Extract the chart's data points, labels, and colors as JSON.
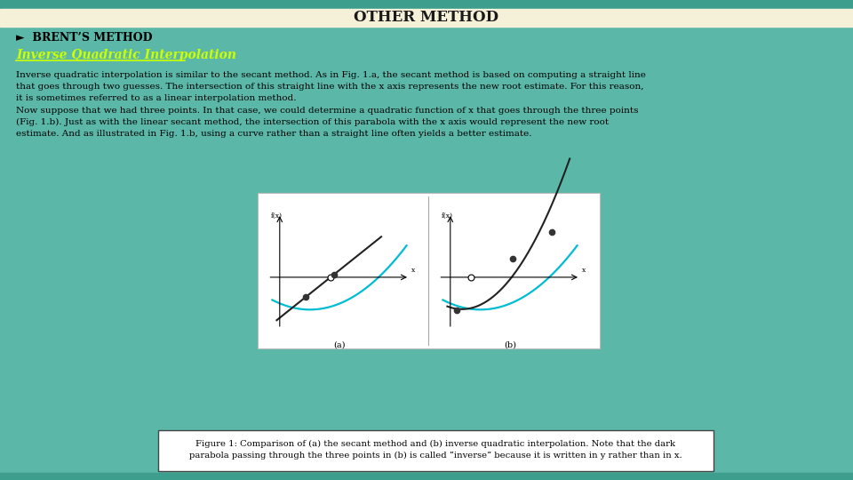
{
  "title": "OTHER METHOD",
  "title_bg": "#f5f0d8",
  "title_text_color": "#1a1a1a",
  "bg_color": "#5bb8a8",
  "stripe_color": "#3d9e8e",
  "subtitle": "►  BRENT’S METHOD",
  "subtitle_color": "#000000",
  "section_title": "Inverse Quadratic Interpolation",
  "section_title_color": "#ccff00",
  "body_text_1": "Inverse quadratic interpolation is similar to the secant method. As in Fig. 1.a, the secant method is based on computing a straight line\nthat goes through two guesses. The intersection of this straight line with the x axis represents the new root estimate. For this reason,\nit is sometimes referred to as a linear interpolation method.",
  "body_text_2": "Now suppose that we had three points. In that case, we could determine a quadratic function of x that goes through the three points\n(Fig. 1.b). Just as with the linear secant method, the intersection of this parabola with the x axis would represent the new root\nestimate. And as illustrated in Fig. 1.b, using a curve rather than a straight line often yields a better estimate.",
  "body_text_color": "#000000",
  "caption_text": "Figure 1: Comparison of (a) the secant method and (b) inverse quadratic interpolation. Note that the dark\nparabola passing through the three points in (b) is called “inverse” because it is written in y rather than in x.",
  "caption_box_bg": "#ffffff",
  "caption_box_border": "#444444",
  "fig_box_bg": "#ffffff",
  "curve_color_cyan": "#00bcd4",
  "curve_color_black": "#222222",
  "dot_color_dark": "#333333",
  "dot_color_white": "#ffffff"
}
